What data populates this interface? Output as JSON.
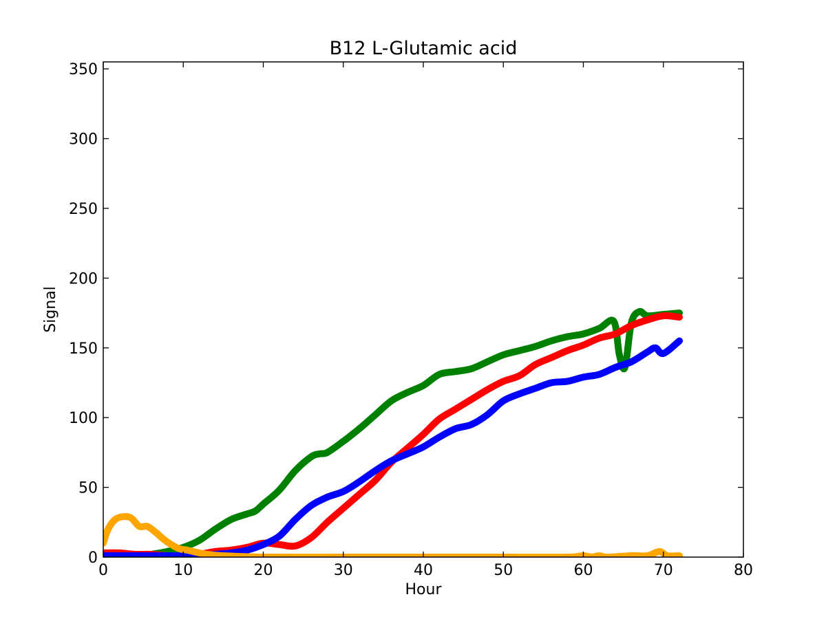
{
  "chart_data": {
    "type": "line",
    "title": "B12 L-Glutamic acid",
    "xlabel": "Hour",
    "ylabel": "Signal",
    "xlim": [
      0,
      80
    ],
    "ylim": [
      0,
      355
    ],
    "xticks": [
      0,
      10,
      20,
      30,
      40,
      50,
      60,
      70,
      80
    ],
    "yticks": [
      0,
      50,
      100,
      150,
      200,
      250,
      300,
      350
    ],
    "grid": false,
    "series": [
      {
        "color": "#008000",
        "x": [
          0,
          2,
          4,
          6,
          8,
          10,
          12,
          14,
          16,
          18,
          19,
          20,
          22,
          24,
          26,
          27,
          28,
          30,
          32,
          34,
          36,
          38,
          40,
          42,
          44,
          46,
          48,
          50,
          52,
          54,
          56,
          58,
          60,
          62,
          63.8,
          64.5,
          65.2,
          66,
          67,
          68,
          70,
          72
        ],
        "y": [
          1,
          1,
          1,
          2,
          4,
          7,
          12,
          20,
          27,
          31,
          33,
          38,
          48,
          62,
          72,
          74,
          75,
          83,
          92,
          102,
          112,
          118,
          123,
          131,
          133,
          135,
          140,
          145,
          148,
          151,
          155,
          158,
          160,
          164,
          169,
          145,
          136,
          168,
          176,
          173,
          174,
          175
        ]
      },
      {
        "color": "#ff0000",
        "x": [
          0,
          2,
          4,
          6,
          8,
          10,
          12,
          14,
          16,
          18,
          20,
          22,
          24,
          26,
          28,
          30,
          32,
          34,
          36,
          38,
          40,
          42,
          44,
          46,
          48,
          50,
          52,
          54,
          56,
          58,
          60,
          62,
          64,
          66,
          68,
          70,
          72
        ],
        "y": [
          3,
          3,
          2,
          2,
          1,
          1,
          2,
          4,
          5,
          7,
          10,
          9,
          8,
          14,
          25,
          35,
          45,
          55,
          68,
          78,
          88,
          99,
          106,
          113,
          120,
          126,
          130,
          138,
          143,
          148,
          152,
          157,
          160,
          166,
          170,
          173,
          172
        ]
      },
      {
        "color": "#0000ff",
        "x": [
          0,
          2,
          4,
          6,
          8,
          10,
          12,
          14,
          16,
          18,
          20,
          22,
          24,
          26,
          28,
          30,
          32,
          34,
          36,
          38,
          40,
          42,
          44,
          46,
          48,
          50,
          52,
          54,
          56,
          58,
          60,
          62,
          64,
          66,
          68,
          69,
          70,
          72
        ],
        "y": [
          1,
          1,
          1,
          1,
          1,
          1,
          1,
          2,
          3,
          5,
          9,
          15,
          27,
          37,
          43,
          47,
          54,
          62,
          69,
          74,
          79,
          86,
          92,
          95,
          102,
          112,
          117,
          121,
          125,
          126,
          129,
          131,
          136,
          140,
          147,
          150,
          146,
          155
        ]
      },
      {
        "color": "#ffa500",
        "x": [
          0,
          0.6,
          1.5,
          2.5,
          3.5,
          4.5,
          5.5,
          6.5,
          7.5,
          8.5,
          9.5,
          10.5,
          12,
          13,
          15,
          20,
          30,
          40,
          50,
          58,
          60,
          61,
          62,
          63,
          66,
          68,
          69.5,
          70.5,
          72
        ],
        "y": [
          10,
          20,
          27,
          29,
          28,
          22,
          22,
          18,
          13,
          9,
          6,
          5,
          3,
          2,
          1,
          0,
          0,
          0,
          0,
          0,
          1,
          0,
          1,
          0,
          1,
          1,
          4,
          1,
          1
        ]
      }
    ]
  }
}
